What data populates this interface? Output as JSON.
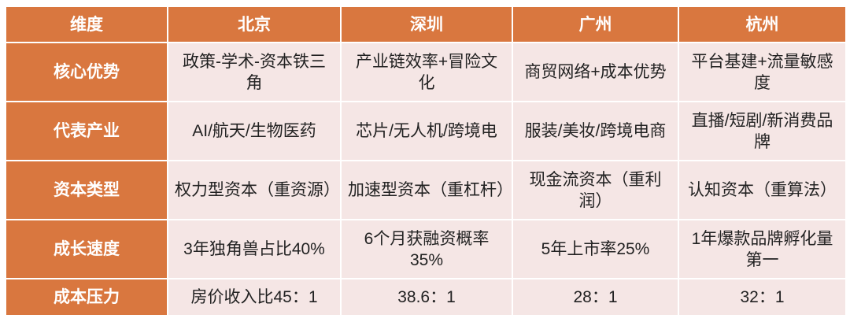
{
  "table": {
    "headers": [
      "维度",
      "北京",
      "深圳",
      "广州",
      "杭州"
    ],
    "rows": [
      {
        "label": "核心优势",
        "cells": [
          "政策-学术-资本铁三角",
          "产业链效率+冒险文化",
          "商贸网络+成本优势",
          "平台基建+流量敏感度"
        ]
      },
      {
        "label": "代表产业",
        "cells": [
          "AI/航天/生物医药",
          "芯片/无人机/跨境电",
          "服装/美妆/跨境电商",
          "直播/短剧/新消费品牌"
        ]
      },
      {
        "label": "资本类型",
        "cells": [
          "权力型资本（重资源）",
          "加速型资本（重杠杆）",
          "现金流资本（重利润）",
          "认知资本（重算法）"
        ]
      },
      {
        "label": "成长速度",
        "cells": [
          "3年独角兽占比40%",
          "6个月获融资概率35%",
          "5年上市率25%",
          "1年爆款品牌孵化量第一"
        ]
      },
      {
        "label": "成本压力",
        "cells": [
          "房价收入比45：1",
          "38.6：1",
          "28：1",
          "32：1"
        ]
      }
    ]
  },
  "colors": {
    "header": "#D9773F",
    "cell": "#F5E6E5",
    "border": "#FFFFFF"
  }
}
